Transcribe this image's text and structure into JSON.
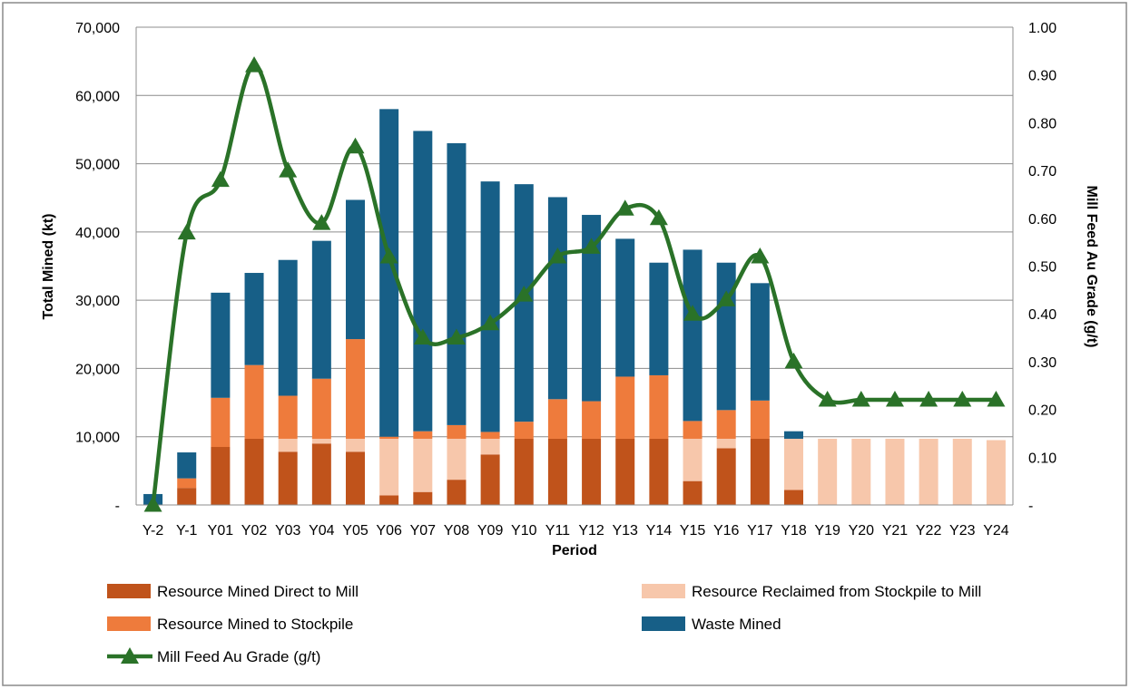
{
  "chart_data": {
    "type": "bar",
    "stacked": true,
    "categories": [
      "Y-2",
      "Y-1",
      "Y01",
      "Y02",
      "Y03",
      "Y04",
      "Y05",
      "Y06",
      "Y07",
      "Y08",
      "Y09",
      "Y10",
      "Y11",
      "Y12",
      "Y13",
      "Y14",
      "Y15",
      "Y16",
      "Y17",
      "Y18",
      "Y19",
      "Y20",
      "Y21",
      "Y22",
      "Y23",
      "Y24"
    ],
    "xlabel": "Period",
    "ylabel": "Total Mined (kt)",
    "y2label": "Mill Feed Au Grade (g/t)",
    "ylim": [
      0,
      70000
    ],
    "y2lim": [
      0,
      1.0
    ],
    "yticks": [
      "-",
      "10,000",
      "20,000",
      "30,000",
      "40,000",
      "50,000",
      "60,000",
      "70,000"
    ],
    "y2ticks": [
      "-",
      "0.10",
      "0.20",
      "0.30",
      "0.40",
      "0.50",
      "0.60",
      "0.70",
      "0.80",
      "0.90",
      "1.00"
    ],
    "grid": true,
    "legend_position": "bottom",
    "colors": {
      "direct": "#c0531b",
      "stockpile": "#ee7b3c",
      "reclaimed": "#f7c7ab",
      "waste": "#175f87",
      "grade": "#2a7228"
    },
    "series": [
      {
        "name": "Resource Mined Direct to Mill",
        "key": "direct",
        "values": [
          0,
          2500,
          8500,
          9700,
          7800,
          9000,
          7800,
          1400,
          1900,
          3700,
          7400,
          9700,
          9700,
          9700,
          9700,
          9700,
          3500,
          8300,
          9700,
          2200,
          0,
          0,
          0,
          0,
          0,
          0
        ]
      },
      {
        "name": "Resource Reclaimed from Stockpile to Mill",
        "key": "reclaimed",
        "values": [
          0,
          0,
          0,
          0,
          1900,
          700,
          1900,
          8300,
          7800,
          6000,
          2300,
          0,
          0,
          0,
          0,
          0,
          6200,
          1400,
          0,
          7500,
          9700,
          9700,
          9700,
          9700,
          9700,
          9500
        ]
      },
      {
        "name": "Resource Mined to Stockpile",
        "key": "stockpile",
        "values": [
          0,
          1400,
          7200,
          10800,
          6300,
          8800,
          14600,
          300,
          1100,
          2000,
          1000,
          2500,
          5800,
          5500,
          9100,
          9300,
          2600,
          4200,
          5600,
          0,
          0,
          0,
          0,
          0,
          0,
          0
        ]
      },
      {
        "name": "Waste Mined",
        "key": "waste",
        "values": [
          1600,
          3800,
          15400,
          13500,
          19900,
          20200,
          20400,
          48000,
          44000,
          41300,
          36700,
          34800,
          29600,
          27300,
          20200,
          16500,
          25100,
          21600,
          17200,
          1100,
          0,
          0,
          0,
          0,
          0,
          0
        ]
      },
      {
        "name": "Mill Feed Au Grade (g/t)",
        "key": "grade",
        "type": "line",
        "axis": "y2",
        "values": [
          0.0,
          0.57,
          0.68,
          0.92,
          0.7,
          0.59,
          0.75,
          0.52,
          0.35,
          0.35,
          0.38,
          0.44,
          0.52,
          0.54,
          0.62,
          0.6,
          0.4,
          0.43,
          0.52,
          0.3,
          0.22,
          0.22,
          0.22,
          0.22,
          0.22,
          0.22
        ]
      }
    ],
    "legend": [
      {
        "name": "Resource Mined Direct to Mill",
        "key": "direct",
        "kind": "box"
      },
      {
        "name": "Resource Reclaimed from Stockpile to Mill",
        "key": "reclaimed",
        "kind": "box"
      },
      {
        "name": "Resource Mined to Stockpile",
        "key": "stockpile",
        "kind": "box"
      },
      {
        "name": "Waste Mined",
        "key": "waste",
        "kind": "box"
      },
      {
        "name": "Mill Feed Au Grade (g/t)",
        "key": "grade",
        "kind": "line"
      }
    ]
  }
}
